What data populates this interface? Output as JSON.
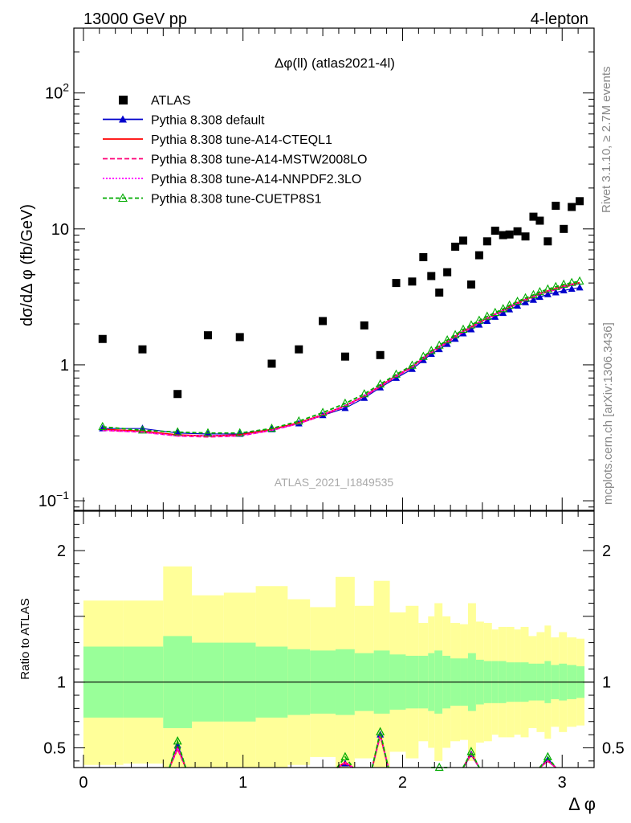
{
  "header": {
    "left": "13000 GeV pp",
    "right": "4-lepton"
  },
  "side_labels": {
    "rivet": "Rivet 3.1.10, ≥ 2.7M events",
    "mcplots": "mcplots.cern.ch [arXiv:1306.3436]"
  },
  "watermark": "ATLAS_2021_I1849535",
  "colors": {
    "data": "#000000",
    "default": "#0000cc",
    "cteql1": "#ff0000",
    "mstw": "#ff0077",
    "nnpdf": "#ff00ff",
    "cuetp": "#00aa00",
    "band_inner": "#99ff99",
    "band_outer": "#ffff99"
  },
  "chart_data": [
    {
      "type": "scatter",
      "title": "Δφ(ll) (atlas2021-4l)",
      "ylabel": "dσ/dΔ φ (fb/GeV)",
      "xlabel": "",
      "xlim": [
        -0.06,
        3.2
      ],
      "ylim": [
        0.085,
        300
      ],
      "yscale": "log",
      "y_ticks": [
        {
          "value": 0.1,
          "base": "10",
          "exp": "−1"
        },
        {
          "value": 1,
          "base": "1",
          "exp": ""
        },
        {
          "value": 10,
          "base": "10",
          "exp": ""
        },
        {
          "value": 100,
          "base": "10",
          "exp": "2"
        }
      ],
      "legend_position": "top-left",
      "x": [
        0.12,
        0.37,
        0.59,
        0.78,
        0.98,
        1.18,
        1.35,
        1.5,
        1.64,
        1.76,
        1.86,
        1.96,
        2.06,
        2.13,
        2.18,
        2.23,
        2.28,
        2.33,
        2.38,
        2.43,
        2.48,
        2.53,
        2.58,
        2.63,
        2.67,
        2.72,
        2.77,
        2.82,
        2.86,
        2.91,
        2.96,
        3.01,
        3.06,
        3.11
      ],
      "series": [
        {
          "name": "ATLAS",
          "key": "data",
          "marker": "square",
          "values": [
            1.55,
            1.3,
            0.61,
            1.65,
            1.6,
            1.02,
            1.3,
            2.1,
            1.15,
            1.95,
            1.18,
            4.0,
            4.1,
            6.2,
            4.5,
            3.4,
            4.8,
            7.4,
            8.2,
            3.9,
            6.4,
            8.1,
            9.7,
            9.0,
            9.1,
            9.6,
            8.8,
            12.3,
            11.5,
            8.1,
            14.8,
            10.0,
            14.5,
            16.0
          ]
        },
        {
          "name": "Pythia 8.308 default",
          "key": "default",
          "marker": "triangle",
          "dash": "",
          "values": [
            0.34,
            0.34,
            0.315,
            0.31,
            0.31,
            0.335,
            0.37,
            0.425,
            0.48,
            0.57,
            0.68,
            0.8,
            0.93,
            1.08,
            1.2,
            1.3,
            1.42,
            1.55,
            1.7,
            1.82,
            1.97,
            2.1,
            2.25,
            2.4,
            2.55,
            2.72,
            2.88,
            3.0,
            3.15,
            3.3,
            3.4,
            3.52,
            3.62,
            3.7
          ]
        },
        {
          "name": "Pythia 8.308 tune-A14-CTEQL1",
          "key": "cteql1",
          "marker": "none",
          "dash": "",
          "values": [
            0.335,
            0.325,
            0.305,
            0.3,
            0.305,
            0.335,
            0.375,
            0.43,
            0.5,
            0.59,
            0.7,
            0.83,
            0.97,
            1.12,
            1.25,
            1.36,
            1.48,
            1.62,
            1.77,
            1.9,
            2.06,
            2.2,
            2.36,
            2.52,
            2.68,
            2.86,
            3.03,
            3.18,
            3.35,
            3.5,
            3.65,
            3.8,
            3.92,
            4.02
          ]
        },
        {
          "name": "Pythia 8.308 tune-A14-MSTW2008LO",
          "key": "mstw",
          "marker": "none",
          "dash": "6,3",
          "values": [
            0.33,
            0.32,
            0.3,
            0.295,
            0.3,
            0.33,
            0.37,
            0.425,
            0.495,
            0.585,
            0.69,
            0.82,
            0.96,
            1.11,
            1.23,
            1.34,
            1.46,
            1.6,
            1.74,
            1.87,
            2.03,
            2.17,
            2.32,
            2.48,
            2.64,
            2.82,
            2.98,
            3.14,
            3.3,
            3.44,
            3.58,
            3.72,
            3.85,
            3.95
          ]
        },
        {
          "name": "Pythia 8.308 tune-A14-NNPDF2.3LO",
          "key": "nnpdf",
          "marker": "none",
          "dash": "2,2",
          "values": [
            0.33,
            0.32,
            0.3,
            0.3,
            0.3,
            0.33,
            0.37,
            0.43,
            0.5,
            0.59,
            0.7,
            0.83,
            0.97,
            1.12,
            1.25,
            1.36,
            1.48,
            1.62,
            1.76,
            1.9,
            2.05,
            2.2,
            2.35,
            2.52,
            2.68,
            2.86,
            3.02,
            3.18,
            3.34,
            3.48,
            3.62,
            3.78,
            3.9,
            4.0
          ]
        },
        {
          "name": "Pythia 8.308 tune-CUETP8S1",
          "key": "cuetp",
          "marker": "triangle-open",
          "dash": "5,3",
          "values": [
            0.35,
            0.33,
            0.32,
            0.315,
            0.315,
            0.34,
            0.385,
            0.445,
            0.52,
            0.61,
            0.72,
            0.85,
            0.99,
            1.15,
            1.27,
            1.39,
            1.52,
            1.66,
            1.82,
            1.96,
            2.12,
            2.27,
            2.42,
            2.58,
            2.74,
            2.92,
            3.1,
            3.27,
            3.44,
            3.6,
            3.75,
            3.9,
            4.02,
            4.12
          ]
        }
      ]
    },
    {
      "type": "line",
      "title": "",
      "ylabel": "Ratio to ATLAS",
      "xlabel": "Δ φ",
      "xlim": [
        -0.06,
        3.2
      ],
      "ylim": [
        0.35,
        2.3
      ],
      "x_ticks": [
        0,
        1,
        2,
        3
      ],
      "y_ticks": [
        0.5,
        1,
        2
      ],
      "reference_line": 1,
      "band_bins": [
        [
          0.0,
          0.25
        ],
        [
          0.25,
          0.5
        ],
        [
          0.5,
          0.68
        ],
        [
          0.68,
          0.88
        ],
        [
          0.88,
          1.08
        ],
        [
          1.08,
          1.28
        ],
        [
          1.28,
          1.42
        ],
        [
          1.42,
          1.58
        ],
        [
          1.58,
          1.7
        ],
        [
          1.7,
          1.82
        ],
        [
          1.82,
          1.92
        ],
        [
          1.92,
          2.02
        ],
        [
          2.02,
          2.1
        ],
        [
          2.1,
          2.16
        ],
        [
          2.16,
          2.2
        ],
        [
          2.2,
          2.25
        ],
        [
          2.25,
          2.3
        ],
        [
          2.3,
          2.36
        ],
        [
          2.36,
          2.41
        ],
        [
          2.41,
          2.46
        ],
        [
          2.46,
          2.51
        ],
        [
          2.51,
          2.56
        ],
        [
          2.56,
          2.6
        ],
        [
          2.6,
          2.65
        ],
        [
          2.65,
          2.7
        ],
        [
          2.7,
          2.74
        ],
        [
          2.74,
          2.79
        ],
        [
          2.79,
          2.84
        ],
        [
          2.84,
          2.89
        ],
        [
          2.89,
          2.93
        ],
        [
          2.93,
          2.98
        ],
        [
          2.98,
          3.03
        ],
        [
          3.03,
          3.09
        ],
        [
          3.09,
          3.14
        ]
      ],
      "band_inner_hi": [
        1.27,
        1.27,
        1.35,
        1.3,
        1.3,
        1.27,
        1.25,
        1.24,
        1.25,
        1.22,
        1.24,
        1.21,
        1.2,
        1.2,
        1.22,
        1.24,
        1.2,
        1.18,
        1.18,
        1.22,
        1.17,
        1.16,
        1.16,
        1.16,
        1.15,
        1.15,
        1.15,
        1.14,
        1.14,
        1.16,
        1.13,
        1.14,
        1.13,
        1.12
      ],
      "band_inner_lo": [
        0.73,
        0.73,
        0.65,
        0.7,
        0.7,
        0.73,
        0.75,
        0.76,
        0.75,
        0.78,
        0.76,
        0.79,
        0.8,
        0.8,
        0.78,
        0.76,
        0.8,
        0.82,
        0.82,
        0.78,
        0.83,
        0.84,
        0.84,
        0.84,
        0.85,
        0.85,
        0.85,
        0.86,
        0.86,
        0.84,
        0.87,
        0.86,
        0.87,
        0.88
      ],
      "band_outer_hi": [
        1.62,
        1.62,
        1.88,
        1.66,
        1.68,
        1.73,
        1.63,
        1.57,
        1.8,
        1.58,
        1.77,
        1.53,
        1.58,
        1.45,
        1.5,
        1.6,
        1.5,
        1.45,
        1.44,
        1.6,
        1.46,
        1.45,
        1.4,
        1.42,
        1.42,
        1.4,
        1.42,
        1.35,
        1.38,
        1.43,
        1.34,
        1.38,
        1.34,
        1.33
      ],
      "band_outer_lo": [
        0.37,
        0.38,
        0.12,
        0.34,
        0.32,
        0.27,
        0.37,
        0.43,
        0.2,
        0.42,
        0.23,
        0.47,
        0.42,
        0.55,
        0.5,
        0.4,
        0.5,
        0.55,
        0.56,
        0.4,
        0.54,
        0.55,
        0.6,
        0.58,
        0.58,
        0.6,
        0.58,
        0.65,
        0.62,
        0.57,
        0.66,
        0.62,
        0.66,
        0.67
      ],
      "ratio_points": [
        {
          "key": "default",
          "values": [
            [
              0.59,
              0.52
            ],
            [
              1.64,
              0.38
            ],
            [
              1.86,
              0.6
            ],
            [
              2.43,
              0.45
            ],
            [
              2.91,
              0.41
            ]
          ]
        },
        {
          "key": "cteql1",
          "values": [
            [
              0.59,
              0.5
            ],
            [
              1.64,
              0.39
            ],
            [
              1.86,
              0.6
            ],
            [
              2.43,
              0.46
            ],
            [
              2.91,
              0.4
            ]
          ]
        },
        {
          "key": "mstw",
          "values": [
            [
              0.59,
              0.49
            ],
            [
              1.64,
              0.38
            ],
            [
              1.86,
              0.59
            ],
            [
              2.43,
              0.45
            ],
            [
              2.91,
              0.4
            ]
          ]
        },
        {
          "key": "nnpdf",
          "values": [
            [
              0.59,
              0.5
            ],
            [
              1.64,
              0.39
            ],
            [
              1.86,
              0.6
            ],
            [
              2.43,
              0.46
            ],
            [
              2.91,
              0.4
            ]
          ]
        },
        {
          "key": "cuetp",
          "values": [
            [
              0.59,
              0.55
            ],
            [
              1.64,
              0.43
            ],
            [
              1.86,
              0.62
            ],
            [
              2.23,
              0.35
            ],
            [
              2.43,
              0.47
            ],
            [
              2.91,
              0.43
            ]
          ]
        }
      ]
    }
  ]
}
